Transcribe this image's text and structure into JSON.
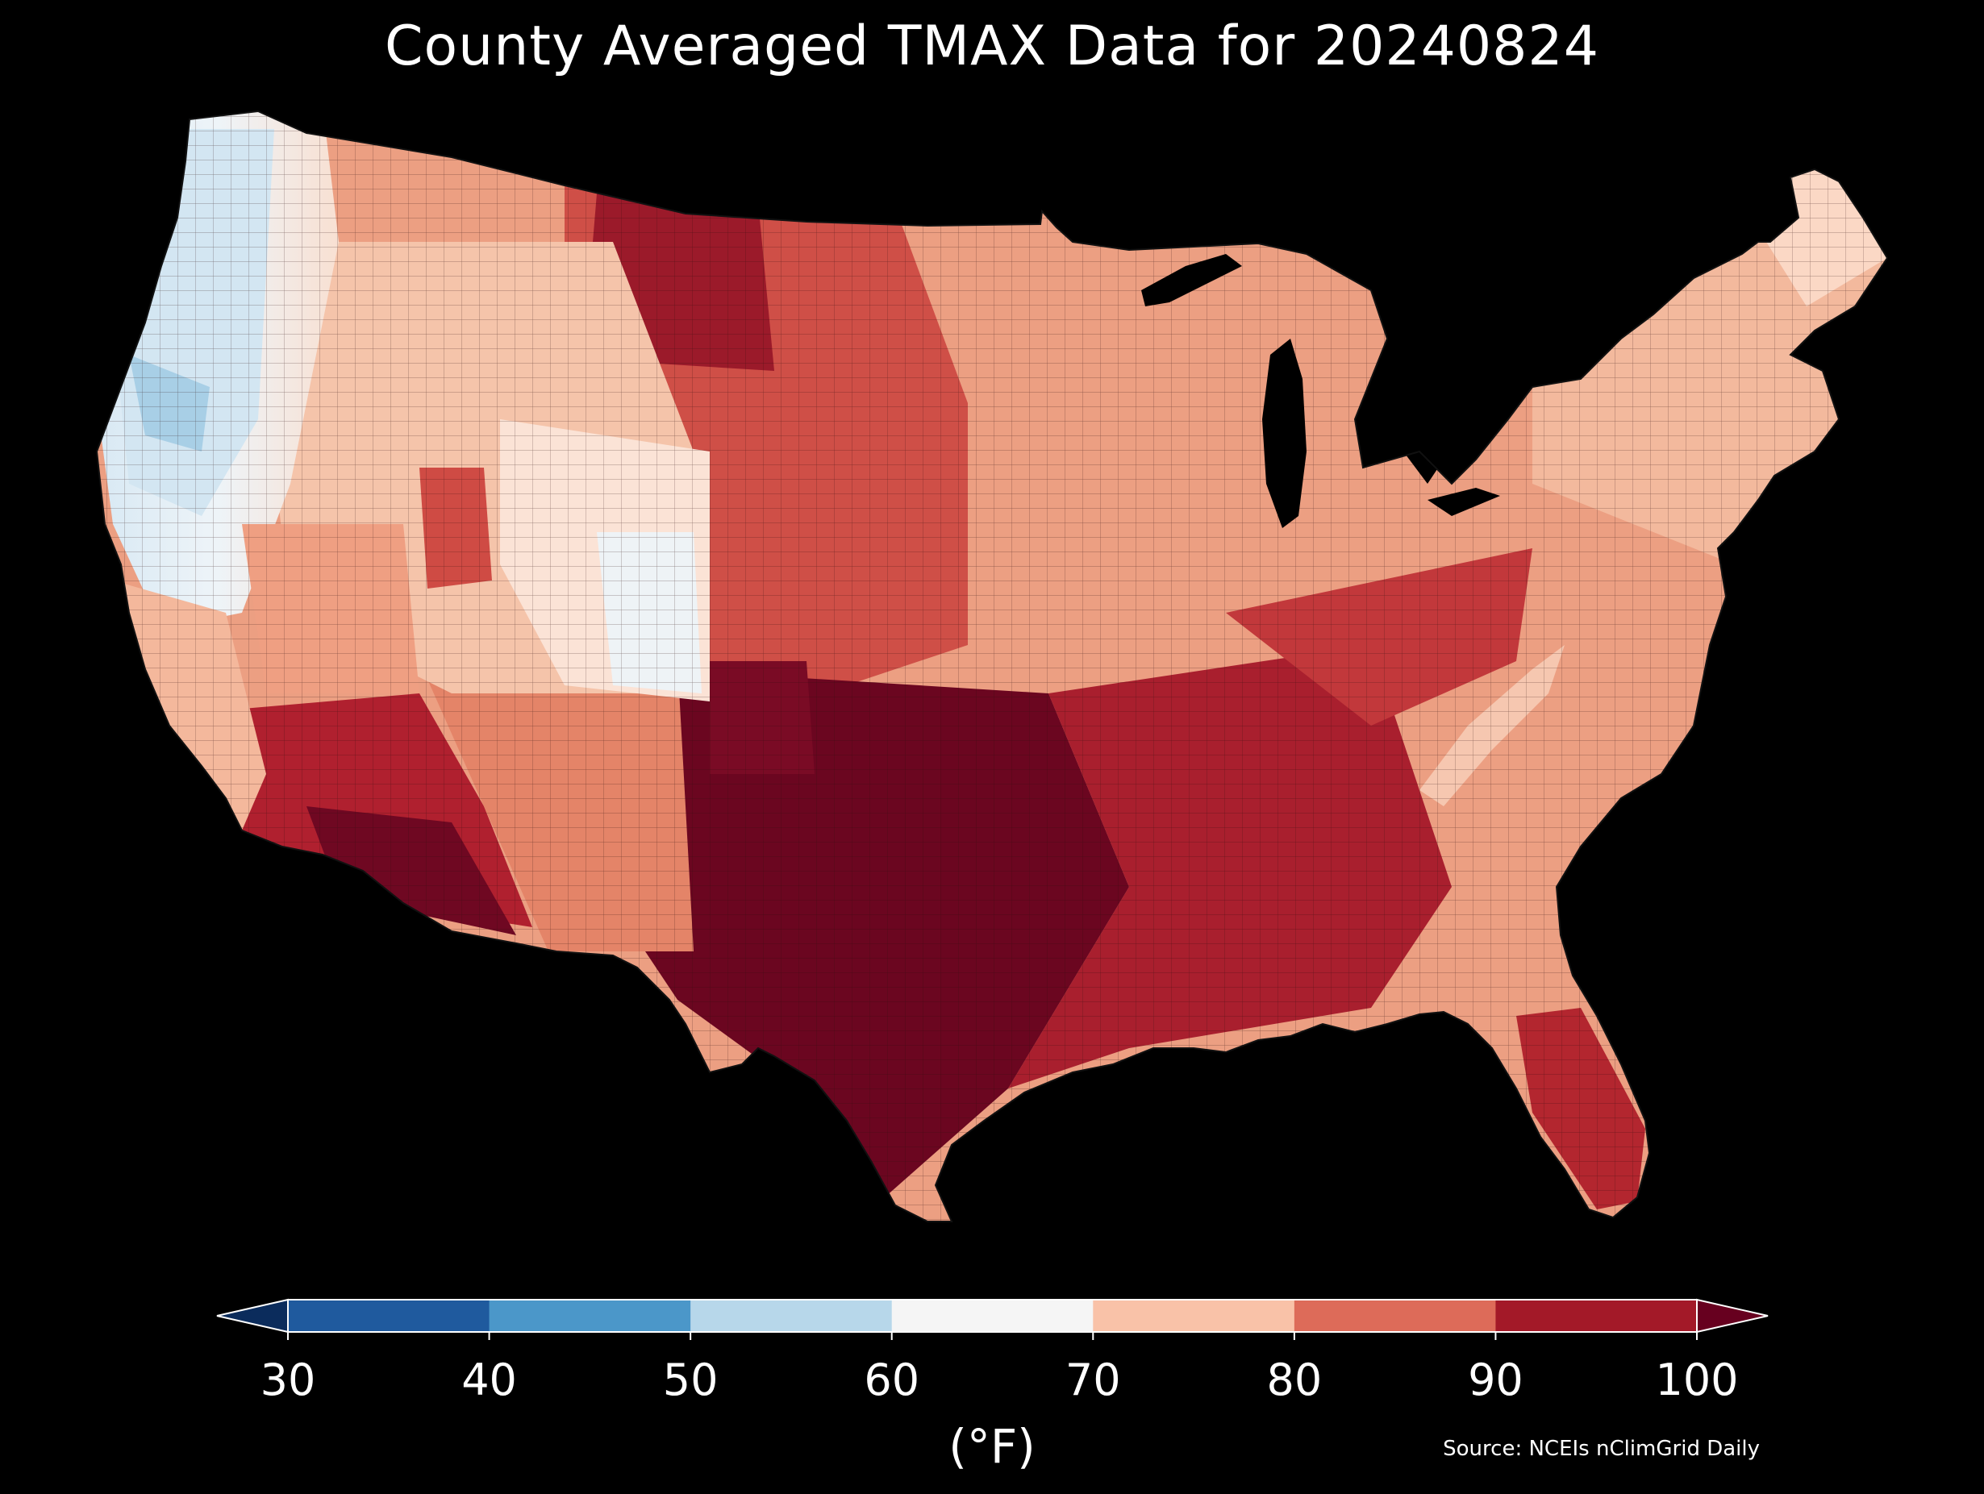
{
  "title": "County Averaged TMAX Data for 20240824",
  "colorbar": {
    "ticks": [
      "30",
      "40",
      "50",
      "60",
      "70",
      "80",
      "90",
      "100"
    ],
    "bins": [
      {
        "range": [
          30,
          40
        ],
        "color": "#1f5a9e"
      },
      {
        "range": [
          40,
          50
        ],
        "color": "#4b97c9"
      },
      {
        "range": [
          50,
          60
        ],
        "color": "#b7d7ea"
      },
      {
        "range": [
          60,
          70
        ],
        "color": "#f5f5f5"
      },
      {
        "range": [
          70,
          80
        ],
        "color": "#f9c2a8"
      },
      {
        "range": [
          80,
          90
        ],
        "color": "#dd6b59"
      },
      {
        "range": [
          90,
          100
        ],
        "color": "#a31928"
      }
    ],
    "under_color": "#0b2c5c",
    "over_color": "#67001f",
    "unit": "(°F)"
  },
  "source": "Source: NCEIs nClimGrid Daily",
  "map": {
    "region": "Contiguous United States",
    "ocean_color": "#000000",
    "outline_color": "#222222"
  }
}
